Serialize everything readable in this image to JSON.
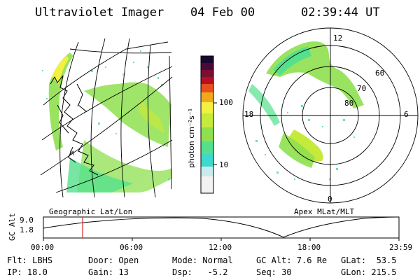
{
  "header": {
    "instrument": "Ultraviolet Imager",
    "date": "04 Feb 00",
    "time": "02:39:44 UT"
  },
  "colorbar": {
    "unit_label": "photon cm⁻²s⁻¹",
    "ticks": [
      "100",
      "10"
    ],
    "colors": [
      "#f2f2f2",
      "#c8ecec",
      "#3fd8cf",
      "#55e08c",
      "#8ee04f",
      "#c6ea3c",
      "#f4f03f",
      "#f2a81c",
      "#e6501c",
      "#b80e24",
      "#7a1030",
      "#4a0a38",
      "#1c0630"
    ]
  },
  "geo_map": {
    "label": "Geographic Lat/Lon"
  },
  "polar_map": {
    "label": "Apex MLat/MLT",
    "mlt_labels": [
      "12",
      "18",
      "6",
      "0"
    ],
    "lat_labels": [
      "60",
      "70",
      "80"
    ]
  },
  "timeline": {
    "axis_label": "GC Alt",
    "y_ticks": [
      "9.0",
      "1.8"
    ],
    "x_ticks": [
      "00:00",
      "06:00",
      "12:00",
      "18:00",
      "23:59"
    ],
    "cursor_time": "02:39"
  },
  "info": {
    "filter": "Flt: LBHS",
    "door": "Door: Open",
    "mode": "Mode: Normal",
    "gc_alt": "GC Alt: 7.6 Re",
    "glat": "GLat:  53.5",
    "ip": "IP: 18.0",
    "gain": "Gain: 13",
    "dsp": "Dsp:   -5.2",
    "seq": "Seq: 30",
    "glon": "GLon: 215.5"
  },
  "colors": {
    "cursor": "#e02020",
    "aurora_green": "#8ee04f",
    "aurora_cyan": "#3fd8cf",
    "aurora_yellow": "#f4f03f"
  }
}
